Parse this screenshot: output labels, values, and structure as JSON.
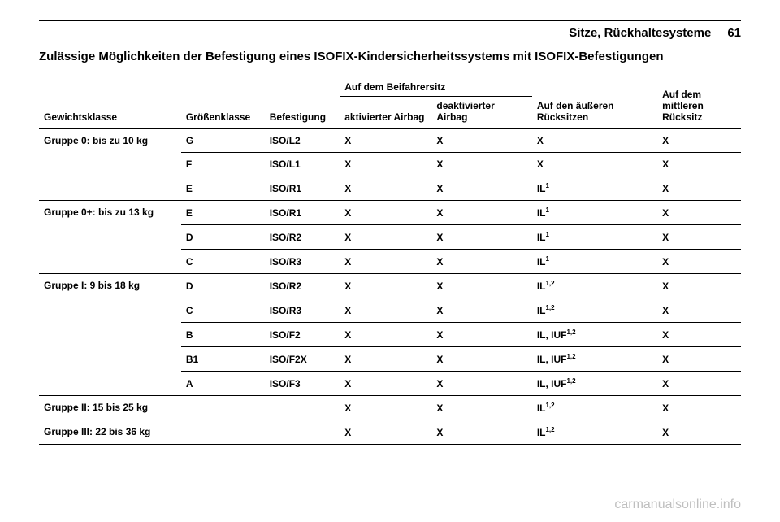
{
  "header": {
    "section_title": "Sitze, Rückhaltesysteme",
    "page_number": "61"
  },
  "page_title": "Zulässige Möglichkeiten der Befestigung eines ISOFIX-Kindersicherheitssystems mit ISOFIX-Befestigungen",
  "columns": {
    "weight": "Gewichtsklasse",
    "size": "Größenklasse",
    "fixation": "Befestigung",
    "front_seat_super": "Auf dem Beifahrersitz",
    "activated": "aktivierter Airbag",
    "deactivated": "deaktivierter Airbag",
    "outer_rear": "Auf den äußeren Rücksitzen",
    "middle_rear": "Auf dem mittleren Rücksitz"
  },
  "groups": {
    "g0": "Gruppe 0: bis zu 10 kg",
    "g0p": "Gruppe 0+: bis zu 13 kg",
    "g1": "Gruppe I: 9 bis 18 kg",
    "g2": "Gruppe II: 15 bis 25 kg",
    "g3": "Gruppe III: 22 bis 36 kg"
  },
  "v": {
    "G": "G",
    "F": "F",
    "E": "E",
    "D": "D",
    "C": "C",
    "B": "B",
    "B1": "B1",
    "A": "A",
    "ISOL2": "ISO/L2",
    "ISOL1": "ISO/L1",
    "ISOR1": "ISO/R1",
    "ISOR2": "ISO/R2",
    "ISOR3": "ISO/R3",
    "ISOF2": "ISO/F2",
    "ISOF2X": "ISO/F2X",
    "ISOF3": "ISO/F3",
    "X": "X",
    "IL1": "IL",
    "IL12": "IL",
    "IL": "IL",
    "ILIUF12": "IL, IUF",
    "sup1": "1",
    "sup12": "1,2"
  },
  "watermark": "carmanualsonline.info"
}
